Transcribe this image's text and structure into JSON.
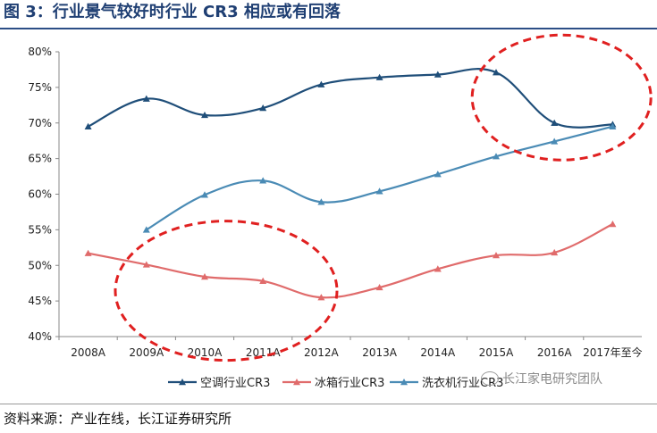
{
  "header": {
    "title": "图 3：行业景气较好时行业 CR3 相应或有回落"
  },
  "footer": {
    "source": "资料来源：产业在线，长江证券研究所",
    "watermark": "长江家电研究团队"
  },
  "colors": {
    "ac": "#1f4e79",
    "fridge": "#e06b6b",
    "washer": "#4a8bb5",
    "highlight": "#e02020",
    "title": "#1f3f73"
  },
  "chart_data": {
    "type": "line",
    "categories": [
      "2008A",
      "2009A",
      "2010A",
      "2011A",
      "2012A",
      "2013A",
      "2014A",
      "2015A",
      "2016A",
      "2017年至今"
    ],
    "ylim": [
      0.4,
      0.8
    ],
    "yticks": [
      "40%",
      "45%",
      "50%",
      "55%",
      "60%",
      "65%",
      "70%",
      "75%",
      "80%"
    ],
    "grid": false,
    "legend_position": "bottom",
    "series": [
      {
        "name": "空调行业CR3",
        "color": "#1f4e79",
        "marker": "triangle",
        "values": [
          0.695,
          0.734,
          0.711,
          0.721,
          0.754,
          0.764,
          0.768,
          0.771,
          0.7,
          0.698
        ]
      },
      {
        "name": "冰箱行业CR3",
        "color": "#e06b6b",
        "marker": "triangle",
        "values": [
          0.517,
          0.501,
          0.484,
          0.478,
          0.455,
          0.469,
          0.495,
          0.514,
          0.518,
          0.558
        ]
      },
      {
        "name": "洗衣机行业CR3",
        "color": "#4a8bb5",
        "marker": "triangle",
        "values": [
          null,
          0.55,
          0.599,
          0.619,
          0.589,
          0.604,
          0.628,
          0.653,
          0.674,
          0.695
        ]
      }
    ],
    "annotations": [
      {
        "shape": "dashed-ellipse",
        "around": "2015A-2017年至今 空调行业CR3"
      },
      {
        "shape": "dashed-ellipse",
        "around": "2009A-2012A 冰箱行业CR3"
      }
    ]
  }
}
